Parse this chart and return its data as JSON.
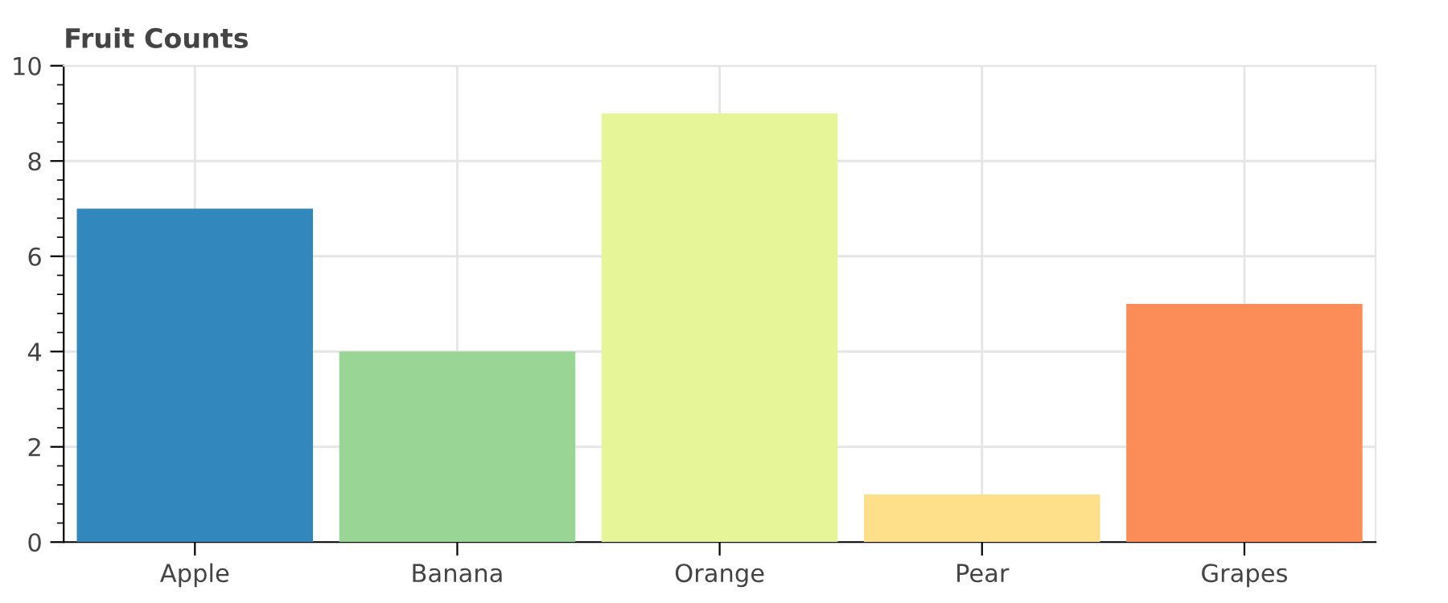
{
  "chart_data": {
    "type": "bar",
    "title": "Fruit Counts",
    "categories": [
      "Apple",
      "Banana",
      "Orange",
      "Pear",
      "Grapes"
    ],
    "values": [
      7,
      4,
      9,
      1,
      5
    ],
    "colors": [
      "#3288bd",
      "#99d594",
      "#e6f598",
      "#fee08b",
      "#fc8d59"
    ],
    "ylim": [
      0,
      10
    ],
    "yticks": [
      0,
      2,
      4,
      6,
      8,
      10
    ],
    "grid": true
  }
}
